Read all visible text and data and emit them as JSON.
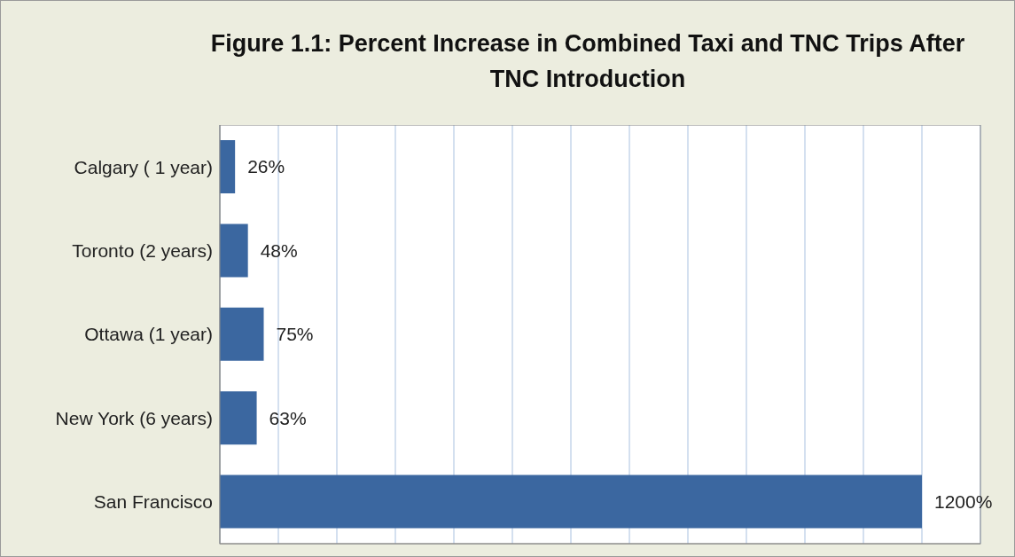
{
  "chart_data": {
    "type": "bar",
    "orientation": "horizontal",
    "title": "Figure 1.1: Percent Increase in Combined Taxi and TNC Trips After TNC Introduction",
    "categories": [
      "Calgary ( 1 year)",
      "Toronto (2 years)",
      "Ottawa (1 year)",
      "New York (6 years)",
      "San Francisco"
    ],
    "values": [
      26,
      48,
      75,
      63,
      1200
    ],
    "value_labels": [
      "26%",
      "48%",
      "75%",
      "63%",
      "1200%"
    ],
    "color": "#3b67a0",
    "xlim": [
      0,
      1300
    ],
    "xticks": [
      {
        "value": 0,
        "label": null
      },
      {
        "value": 100,
        "label": null
      },
      {
        "value": 200,
        "label": null
      },
      {
        "value": 300,
        "label": null
      },
      {
        "value": 400,
        "label": null
      },
      {
        "value": 500,
        "label": null
      },
      {
        "value": 600,
        "label": null
      },
      {
        "value": 700,
        "label": null
      },
      {
        "value": 800,
        "label": null
      },
      {
        "value": 900,
        "label": null
      },
      {
        "value": 1000,
        "label": null
      },
      {
        "value": 1100,
        "label": null
      },
      {
        "value": 1200,
        "label": null
      },
      {
        "value": 1300,
        "label": null
      }
    ],
    "grid": "x",
    "tick_labels": "y"
  }
}
